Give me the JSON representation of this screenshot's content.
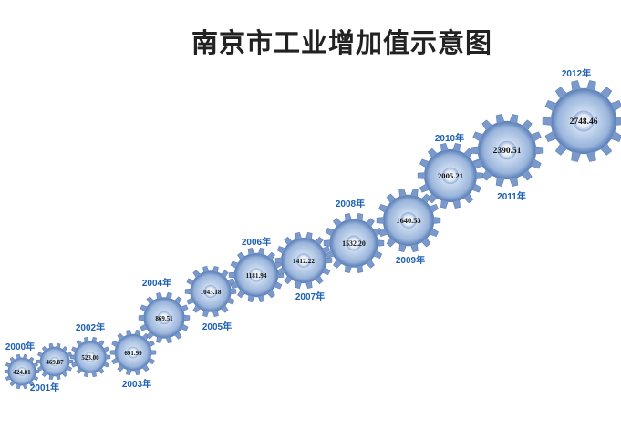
{
  "chart_data": {
    "type": "bar",
    "title": "南京市工业增加值示意图",
    "encoding": "gear size grows with value",
    "categories": [
      "2000年",
      "2001年",
      "2002年",
      "2003年",
      "2004年",
      "2005年",
      "2006年",
      "2007年",
      "2008年",
      "2009年",
      "2010年",
      "2011年",
      "2012年"
    ],
    "values": [
      424.81,
      469.87,
      523.0,
      691.99,
      869.51,
      1043.18,
      1181.94,
      1412.22,
      1532.2,
      1640.53,
      2005.21,
      2390.51,
      2748.46
    ],
    "value_labels": [
      "424.81",
      "469.87",
      "523.00",
      "691.99",
      "869.51",
      "1043.18",
      "1181.94",
      "1412.22",
      "1532.20",
      "1640.53",
      "2005.21",
      "2390.51",
      "2748.46"
    ],
    "colors": {
      "gear_dark": "#5b7fb8",
      "gear_light": "#dde8f6",
      "label": "#1a5fb4"
    }
  }
}
